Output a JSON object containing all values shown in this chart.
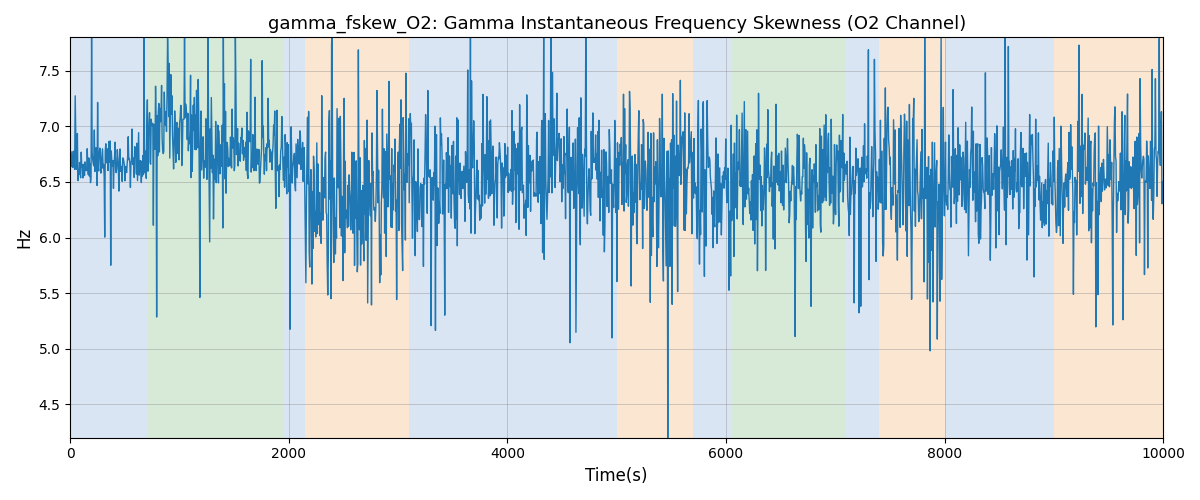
{
  "title": "gamma_fskew_O2: Gamma Instantaneous Frequency Skewness (O2 Channel)",
  "xlabel": "Time(s)",
  "ylabel": "Hz",
  "xlim": [
    0,
    10000
  ],
  "ylim": [
    4.2,
    7.8
  ],
  "yticks": [
    4.5,
    5.0,
    5.5,
    6.0,
    6.5,
    7.0,
    7.5
  ],
  "xticks": [
    0,
    2000,
    4000,
    6000,
    8000,
    10000
  ],
  "line_color": "#1f77b4",
  "line_width": 1.0,
  "bg_color": "#ffffff",
  "regions": [
    {
      "xmin": 0,
      "xmax": 700,
      "color": "#aec6e8",
      "alpha": 0.45
    },
    {
      "xmin": 700,
      "xmax": 1950,
      "color": "#a8d0a8",
      "alpha": 0.45
    },
    {
      "xmin": 1950,
      "xmax": 2150,
      "color": "#aec6e8",
      "alpha": 0.45
    },
    {
      "xmin": 2150,
      "xmax": 3100,
      "color": "#f5c899",
      "alpha": 0.45
    },
    {
      "xmin": 3100,
      "xmax": 5000,
      "color": "#aec6e8",
      "alpha": 0.45
    },
    {
      "xmin": 5000,
      "xmax": 5700,
      "color": "#f5c899",
      "alpha": 0.45
    },
    {
      "xmin": 5700,
      "xmax": 6050,
      "color": "#aec6e8",
      "alpha": 0.45
    },
    {
      "xmin": 6050,
      "xmax": 7100,
      "color": "#a8d0a8",
      "alpha": 0.45
    },
    {
      "xmin": 7100,
      "xmax": 7400,
      "color": "#aec6e8",
      "alpha": 0.45
    },
    {
      "xmin": 7400,
      "xmax": 8000,
      "color": "#f5c899",
      "alpha": 0.45
    },
    {
      "xmin": 8000,
      "xmax": 9000,
      "color": "#aec6e8",
      "alpha": 0.45
    },
    {
      "xmin": 9000,
      "xmax": 10000,
      "color": "#f5c899",
      "alpha": 0.45
    }
  ],
  "seed": 42,
  "n_points": 2000
}
